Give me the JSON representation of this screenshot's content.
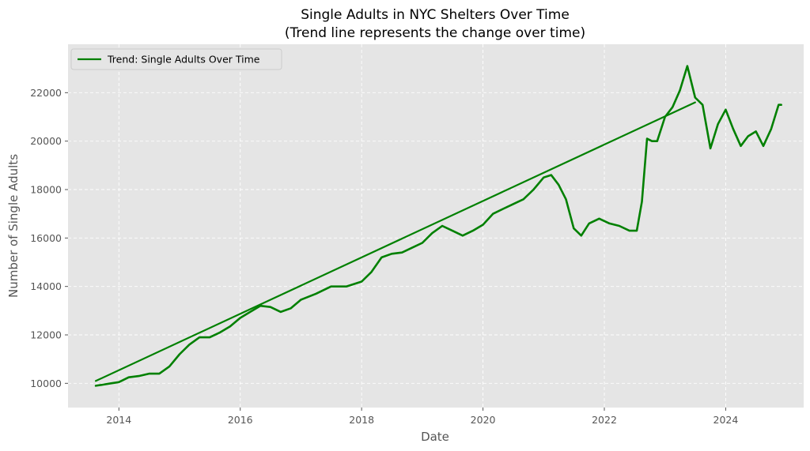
{
  "chart_data": {
    "type": "line",
    "title": "Single Adults in NYC Shelters Over Time",
    "subtitle": "(Trend line represents the change over time)",
    "xlabel": "Date",
    "ylabel": "Number of Single Adults",
    "xlim": [
      "2013-03-01",
      "2025-04-15"
    ],
    "ylim": [
      9000,
      24000
    ],
    "xticks": [
      "2014",
      "2016",
      "2018",
      "2020",
      "2022",
      "2024"
    ],
    "yticks": [
      "10000",
      "12000",
      "14000",
      "16000",
      "18000",
      "20000",
      "22000"
    ],
    "grid": true,
    "legend_position": "top-left",
    "colors": {
      "series": "#008000",
      "background": "#e5e5e5",
      "grid": "#ffffff"
    },
    "series": [
      {
        "name": "",
        "kind": "observed",
        "x": [
          "2013-08-15",
          "2013-10-01",
          "2013-11-15",
          "2014-01-01",
          "2014-03-01",
          "2014-05-01",
          "2014-07-01",
          "2014-09-01",
          "2014-11-01",
          "2015-01-01",
          "2015-03-01",
          "2015-05-01",
          "2015-07-01",
          "2015-09-01",
          "2015-11-01",
          "2016-01-01",
          "2016-03-01",
          "2016-05-01",
          "2016-07-01",
          "2016-09-01",
          "2016-11-01",
          "2017-01-01",
          "2017-04-01",
          "2017-07-01",
          "2017-10-01",
          "2018-01-01",
          "2018-03-01",
          "2018-05-01",
          "2018-07-01",
          "2018-09-01",
          "2018-11-01",
          "2019-01-01",
          "2019-03-01",
          "2019-05-01",
          "2019-07-01",
          "2019-09-01",
          "2019-11-01",
          "2020-01-01",
          "2020-03-01",
          "2020-05-01",
          "2020-07-01",
          "2020-09-01",
          "2020-11-01",
          "2021-01-01",
          "2021-02-15",
          "2021-04-01",
          "2021-05-15",
          "2021-07-01",
          "2021-08-15",
          "2021-10-01",
          "2021-12-01",
          "2022-02-01",
          "2022-04-01",
          "2022-06-01",
          "2022-07-15",
          "2022-08-15",
          "2022-09-15",
          "2022-10-15",
          "2022-11-15",
          "2023-01-01",
          "2023-02-15",
          "2023-04-01",
          "2023-05-15",
          "2023-07-01",
          "2023-08-15",
          "2023-10-01",
          "2023-11-15",
          "2024-01-01",
          "2024-02-15",
          "2024-04-01",
          "2024-05-15",
          "2024-07-01",
          "2024-08-15",
          "2024-10-01",
          "2024-11-15",
          "2024-12-01"
        ],
        "values": [
          9900,
          9950,
          10000,
          10050,
          10250,
          10300,
          10400,
          10400,
          10700,
          11200,
          11600,
          11900,
          11900,
          12100,
          12350,
          12700,
          12950,
          13200,
          13150,
          12950,
          13100,
          13450,
          13700,
          14000,
          14000,
          14200,
          14600,
          15200,
          15350,
          15400,
          15600,
          15800,
          16200,
          16500,
          16300,
          16100,
          16300,
          16550,
          17000,
          17200,
          17400,
          17600,
          18000,
          18500,
          18600,
          18200,
          17600,
          16400,
          16100,
          16600,
          16800,
          16600,
          16500,
          16300,
          16300,
          17500,
          20100,
          20000,
          20000,
          21000,
          21400,
          22100,
          23100,
          21800,
          21500,
          19700,
          20700,
          21300,
          20500,
          19800,
          20200,
          20400,
          19800,
          20500,
          21500,
          21500
        ]
      },
      {
        "name": "Trend: Single Adults Over Time",
        "kind": "trend",
        "x": [
          "2013-08-15",
          "2023-07-01"
        ],
        "values": [
          10100,
          21600
        ]
      }
    ]
  }
}
